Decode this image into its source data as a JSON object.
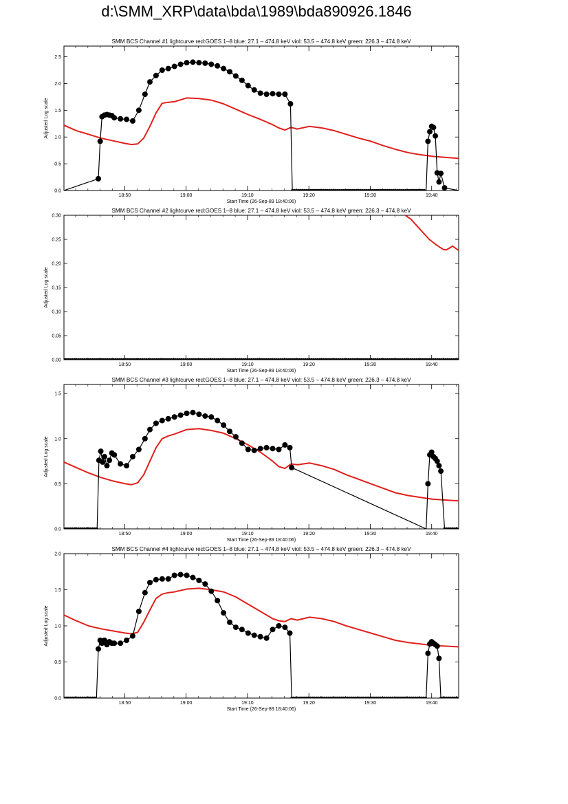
{
  "page": {
    "title": "d:\\SMM_XRP\\data\\bda\\1989\\bda890926.1846"
  },
  "colors": {
    "goes": "#e0201b",
    "bcs": "#000000",
    "axis": "#000000"
  },
  "chart_data": [
    {
      "type": "line",
      "title": "SMM BCS Channel #1 lightcurve  red:GOES 1–8  blue: 27.1 – 474.8 keV  viol: 53.5 – 474.8 keV  green: 226.3 – 474.8 keV",
      "xlabel": "Start Time (26-Sep-89 18:40:06)",
      "ylabel": "Adjusted Log scale",
      "xlim": [
        0,
        64.3
      ],
      "ylim": [
        0,
        2.7
      ],
      "yticks": [
        0.0,
        0.5,
        1.0,
        1.5,
        2.0,
        2.5
      ],
      "ytick_labels": [
        "0.0",
        "0.5",
        "1.0",
        "1.5",
        "2.0",
        "2.5"
      ],
      "xticks": [
        9.9,
        19.9,
        29.9,
        39.9,
        49.9,
        59.9
      ],
      "xtick_labels": [
        "18:50",
        "19:00",
        "19:10",
        "19:20",
        "19:30",
        "19:40"
      ],
      "series": [
        {
          "name": "red:GOES 1–8",
          "color": "#e0201b",
          "style": "line",
          "x": [
            0,
            2,
            4,
            6,
            8,
            10,
            11,
            12,
            13,
            14,
            15,
            16,
            17,
            18,
            20,
            22,
            24,
            26,
            28,
            30,
            32,
            34,
            35,
            36,
            37,
            38,
            40,
            42,
            44,
            46,
            48,
            50,
            52,
            54,
            56,
            58,
            60,
            62,
            64.3
          ],
          "y": [
            1.22,
            1.12,
            1.05,
            0.98,
            0.93,
            0.88,
            0.86,
            0.87,
            0.98,
            1.2,
            1.45,
            1.63,
            1.65,
            1.66,
            1.73,
            1.72,
            1.69,
            1.62,
            1.52,
            1.42,
            1.33,
            1.23,
            1.17,
            1.13,
            1.18,
            1.15,
            1.2,
            1.17,
            1.12,
            1.05,
            0.98,
            0.92,
            0.84,
            0.77,
            0.71,
            0.67,
            0.64,
            0.62,
            0.6
          ]
        },
        {
          "name": "BCS",
          "color": "#000000",
          "style": "line-marker",
          "x": [
            0,
            5.6,
            5.9,
            6.2,
            6.6,
            7.0,
            7.4,
            7.8,
            8.2,
            9.2,
            10.2,
            11.2,
            12.2,
            13.2,
            14.0,
            15.0,
            16.0,
            17.0,
            18.0,
            19.0,
            20.0,
            21.0,
            22.0,
            23.0,
            24.0,
            25.0,
            26.0,
            27.0,
            28.0,
            29.0,
            30.0,
            31.0,
            32.0,
            33.0,
            34.0,
            35.0,
            36.0,
            36.9,
            37.2,
            59.0,
            59.3,
            59.6,
            59.9,
            60.2,
            60.5,
            60.8,
            61.1,
            61.4,
            62.0,
            64.3
          ],
          "y": [
            0.0,
            0.22,
            0.92,
            1.38,
            1.41,
            1.42,
            1.41,
            1.4,
            1.36,
            1.34,
            1.33,
            1.3,
            1.5,
            1.8,
            2.03,
            2.15,
            2.25,
            2.28,
            2.32,
            2.36,
            2.39,
            2.4,
            2.39,
            2.38,
            2.36,
            2.33,
            2.28,
            2.22,
            2.14,
            2.06,
            1.96,
            1.88,
            1.82,
            1.8,
            1.81,
            1.8,
            1.8,
            1.62,
            0.0,
            0.0,
            0.92,
            1.1,
            1.2,
            1.18,
            1.02,
            0.33,
            0.16,
            0.32,
            0.05,
            0.0
          ]
        }
      ]
    },
    {
      "type": "line",
      "title": "SMM BCS Channel #2 lightcurve  red:GOES 1–8  blue: 27.1 – 474.8 keV  viol: 53.5 – 474.8 keV  green: 226.3 – 474.8 keV",
      "xlabel": "Start Time (26-Sep-89 18:40:06)",
      "ylabel": "Adjusted Log scale",
      "xlim": [
        0,
        64.3
      ],
      "ylim": [
        0,
        0.3
      ],
      "yticks": [
        0.0,
        0.05,
        0.1,
        0.15,
        0.2,
        0.25,
        0.3
      ],
      "ytick_labels": [
        "0.00",
        "0.05",
        "0.10",
        "0.15",
        "0.20",
        "0.25",
        "0.30"
      ],
      "xticks": [
        9.9,
        19.9,
        29.9,
        39.9,
        49.9,
        59.9
      ],
      "xtick_labels": [
        "18:50",
        "19:00",
        "19:10",
        "19:20",
        "19:30",
        "19:40"
      ],
      "series": [
        {
          "name": "red:GOES 1–8",
          "color": "#e0201b",
          "style": "line",
          "x": [
            55.6,
            56.5,
            57.5,
            58.5,
            59.5,
            60.5,
            61.3,
            61.8,
            62.3,
            62.8,
            63.3,
            64.3
          ],
          "y": [
            0.3,
            0.292,
            0.278,
            0.264,
            0.25,
            0.24,
            0.233,
            0.229,
            0.228,
            0.232,
            0.236,
            0.227
          ]
        },
        {
          "name": "BCS",
          "color": "#000000",
          "style": "line-marker",
          "x": [
            0,
            64.3
          ],
          "y": [
            0.0,
            0.0
          ]
        }
      ]
    },
    {
      "type": "line",
      "title": "SMM BCS Channel #3 lightcurve  red:GOES 1–8  blue: 27.1 – 474.8 keV  viol: 53.5 – 474.8 keV  green: 226.3 – 474.8 keV",
      "xlabel": "Start Time (26-Sep-89 18:40:06)",
      "ylabel": "Adjusted Log scale",
      "xlim": [
        0,
        64.3
      ],
      "ylim": [
        0,
        1.6
      ],
      "yticks": [
        0.0,
        0.5,
        1.0,
        1.5
      ],
      "ytick_labels": [
        "0.0",
        "0.5",
        "1.0",
        "1.5"
      ],
      "xticks": [
        9.9,
        19.9,
        29.9,
        39.9,
        49.9,
        59.9
      ],
      "xtick_labels": [
        "18:50",
        "19:00",
        "19:10",
        "19:20",
        "19:30",
        "19:40"
      ],
      "series": [
        {
          "name": "red:GOES 1–8",
          "color": "#e0201b",
          "style": "line",
          "x": [
            0,
            2,
            4,
            6,
            8,
            10,
            11,
            12,
            13,
            14,
            15,
            16,
            17,
            18,
            20,
            22,
            24,
            26,
            28,
            30,
            32,
            34,
            35,
            36,
            37,
            38,
            40,
            42,
            44,
            46,
            48,
            50,
            52,
            54,
            56,
            58,
            60,
            62,
            64.3
          ],
          "y": [
            0.74,
            0.68,
            0.62,
            0.57,
            0.53,
            0.5,
            0.49,
            0.51,
            0.6,
            0.75,
            0.9,
            1.0,
            1.03,
            1.05,
            1.1,
            1.11,
            1.09,
            1.06,
            1.0,
            0.93,
            0.85,
            0.75,
            0.69,
            0.67,
            0.72,
            0.71,
            0.73,
            0.7,
            0.66,
            0.6,
            0.55,
            0.5,
            0.45,
            0.4,
            0.37,
            0.35,
            0.33,
            0.32,
            0.31
          ]
        },
        {
          "name": "BCS",
          "color": "#000000",
          "style": "line-marker",
          "x": [
            0,
            5.4,
            5.7,
            6.0,
            6.3,
            6.6,
            7.0,
            7.4,
            7.8,
            8.2,
            9.2,
            10.2,
            11.2,
            12.2,
            13.2,
            14.0,
            15.0,
            16.0,
            17.0,
            18.0,
            19.0,
            20.0,
            21.0,
            22.0,
            23.0,
            24.0,
            25.0,
            26.0,
            27.0,
            28.0,
            29.0,
            30.0,
            31.0,
            32.0,
            33.0,
            34.0,
            35.0,
            36.0,
            36.8,
            37.1,
            59.0,
            59.3,
            59.6,
            59.9,
            60.2,
            60.5,
            60.8,
            61.1,
            61.4,
            62.0,
            64.3
          ],
          "y": [
            0.0,
            0.0,
            0.76,
            0.86,
            0.74,
            0.8,
            0.7,
            0.76,
            0.84,
            0.82,
            0.72,
            0.7,
            0.8,
            0.88,
            1.0,
            1.1,
            1.17,
            1.2,
            1.22,
            1.24,
            1.26,
            1.28,
            1.29,
            1.27,
            1.25,
            1.24,
            1.2,
            1.15,
            1.08,
            1.02,
            0.95,
            0.88,
            0.87,
            0.89,
            0.9,
            0.89,
            0.88,
            0.93,
            0.9,
            0.68,
            0.0,
            0.5,
            0.82,
            0.85,
            0.8,
            0.78,
            0.75,
            0.7,
            0.64,
            0.0,
            0.0
          ]
        }
      ]
    },
    {
      "type": "line",
      "title": "SMM BCS Channel #4 lightcurve  red:GOES 1–8  blue: 27.1 – 474.8 keV  viol: 53.5 – 474.8 keV  green: 226.3 – 474.8 keV",
      "xlabel": "Start Time (26-Sep-89 18:40:06)",
      "ylabel": "Adjusted Log scale",
      "xlim": [
        0,
        64.3
      ],
      "ylim": [
        0,
        2.0
      ],
      "yticks": [
        0.0,
        0.5,
        1.0,
        1.5,
        2.0
      ],
      "ytick_labels": [
        "0.0",
        "0.5",
        "1.0",
        "1.5",
        "2.0"
      ],
      "xticks": [
        9.9,
        19.9,
        29.9,
        39.9,
        49.9,
        59.9
      ],
      "xtick_labels": [
        "18:50",
        "19:00",
        "19:10",
        "19:20",
        "19:30",
        "19:40"
      ],
      "series": [
        {
          "name": "red:GOES 1–8",
          "color": "#e0201b",
          "style": "line",
          "x": [
            0,
            2,
            4,
            6,
            8,
            10,
            11,
            12,
            13,
            14,
            15,
            16,
            17,
            18,
            20,
            22,
            24,
            26,
            28,
            30,
            32,
            34,
            35,
            36,
            37,
            38,
            40,
            42,
            44,
            46,
            48,
            50,
            52,
            54,
            56,
            58,
            60,
            62,
            64.3
          ],
          "y": [
            1.15,
            1.07,
            1.0,
            0.96,
            0.93,
            0.9,
            0.89,
            0.91,
            1.05,
            1.22,
            1.38,
            1.44,
            1.46,
            1.47,
            1.51,
            1.52,
            1.5,
            1.47,
            1.4,
            1.3,
            1.2,
            1.1,
            1.07,
            1.06,
            1.1,
            1.08,
            1.12,
            1.1,
            1.06,
            1.0,
            0.95,
            0.9,
            0.85,
            0.8,
            0.77,
            0.75,
            0.73,
            0.72,
            0.71
          ]
        },
        {
          "name": "BCS",
          "color": "#000000",
          "style": "line-marker",
          "x": [
            0,
            5.3,
            5.6,
            5.9,
            6.2,
            6.6,
            7.0,
            7.4,
            7.8,
            8.2,
            9.2,
            10.2,
            11.2,
            12.2,
            13.2,
            14.0,
            15.0,
            16.0,
            17.0,
            18.0,
            19.0,
            20.0,
            21.0,
            22.0,
            23.0,
            24.0,
            25.0,
            26.0,
            27.0,
            28.0,
            29.0,
            30.0,
            31.0,
            32.0,
            33.0,
            34.0,
            35.0,
            36.0,
            36.8,
            37.1,
            59.0,
            59.3,
            59.6,
            59.9,
            60.2,
            60.5,
            60.8,
            61.1,
            61.4,
            62.0,
            64.3
          ],
          "y": [
            0.0,
            0.0,
            0.68,
            0.8,
            0.76,
            0.8,
            0.74,
            0.78,
            0.76,
            0.76,
            0.76,
            0.8,
            0.86,
            1.2,
            1.46,
            1.6,
            1.64,
            1.65,
            1.65,
            1.7,
            1.71,
            1.7,
            1.67,
            1.63,
            1.58,
            1.48,
            1.35,
            1.18,
            1.05,
            0.98,
            0.95,
            0.9,
            0.87,
            0.85,
            0.83,
            0.95,
            1.0,
            0.98,
            0.9,
            0.0,
            0.0,
            0.62,
            0.75,
            0.78,
            0.76,
            0.74,
            0.72,
            0.55,
            0.0,
            0.0,
            0.0
          ]
        }
      ]
    }
  ]
}
